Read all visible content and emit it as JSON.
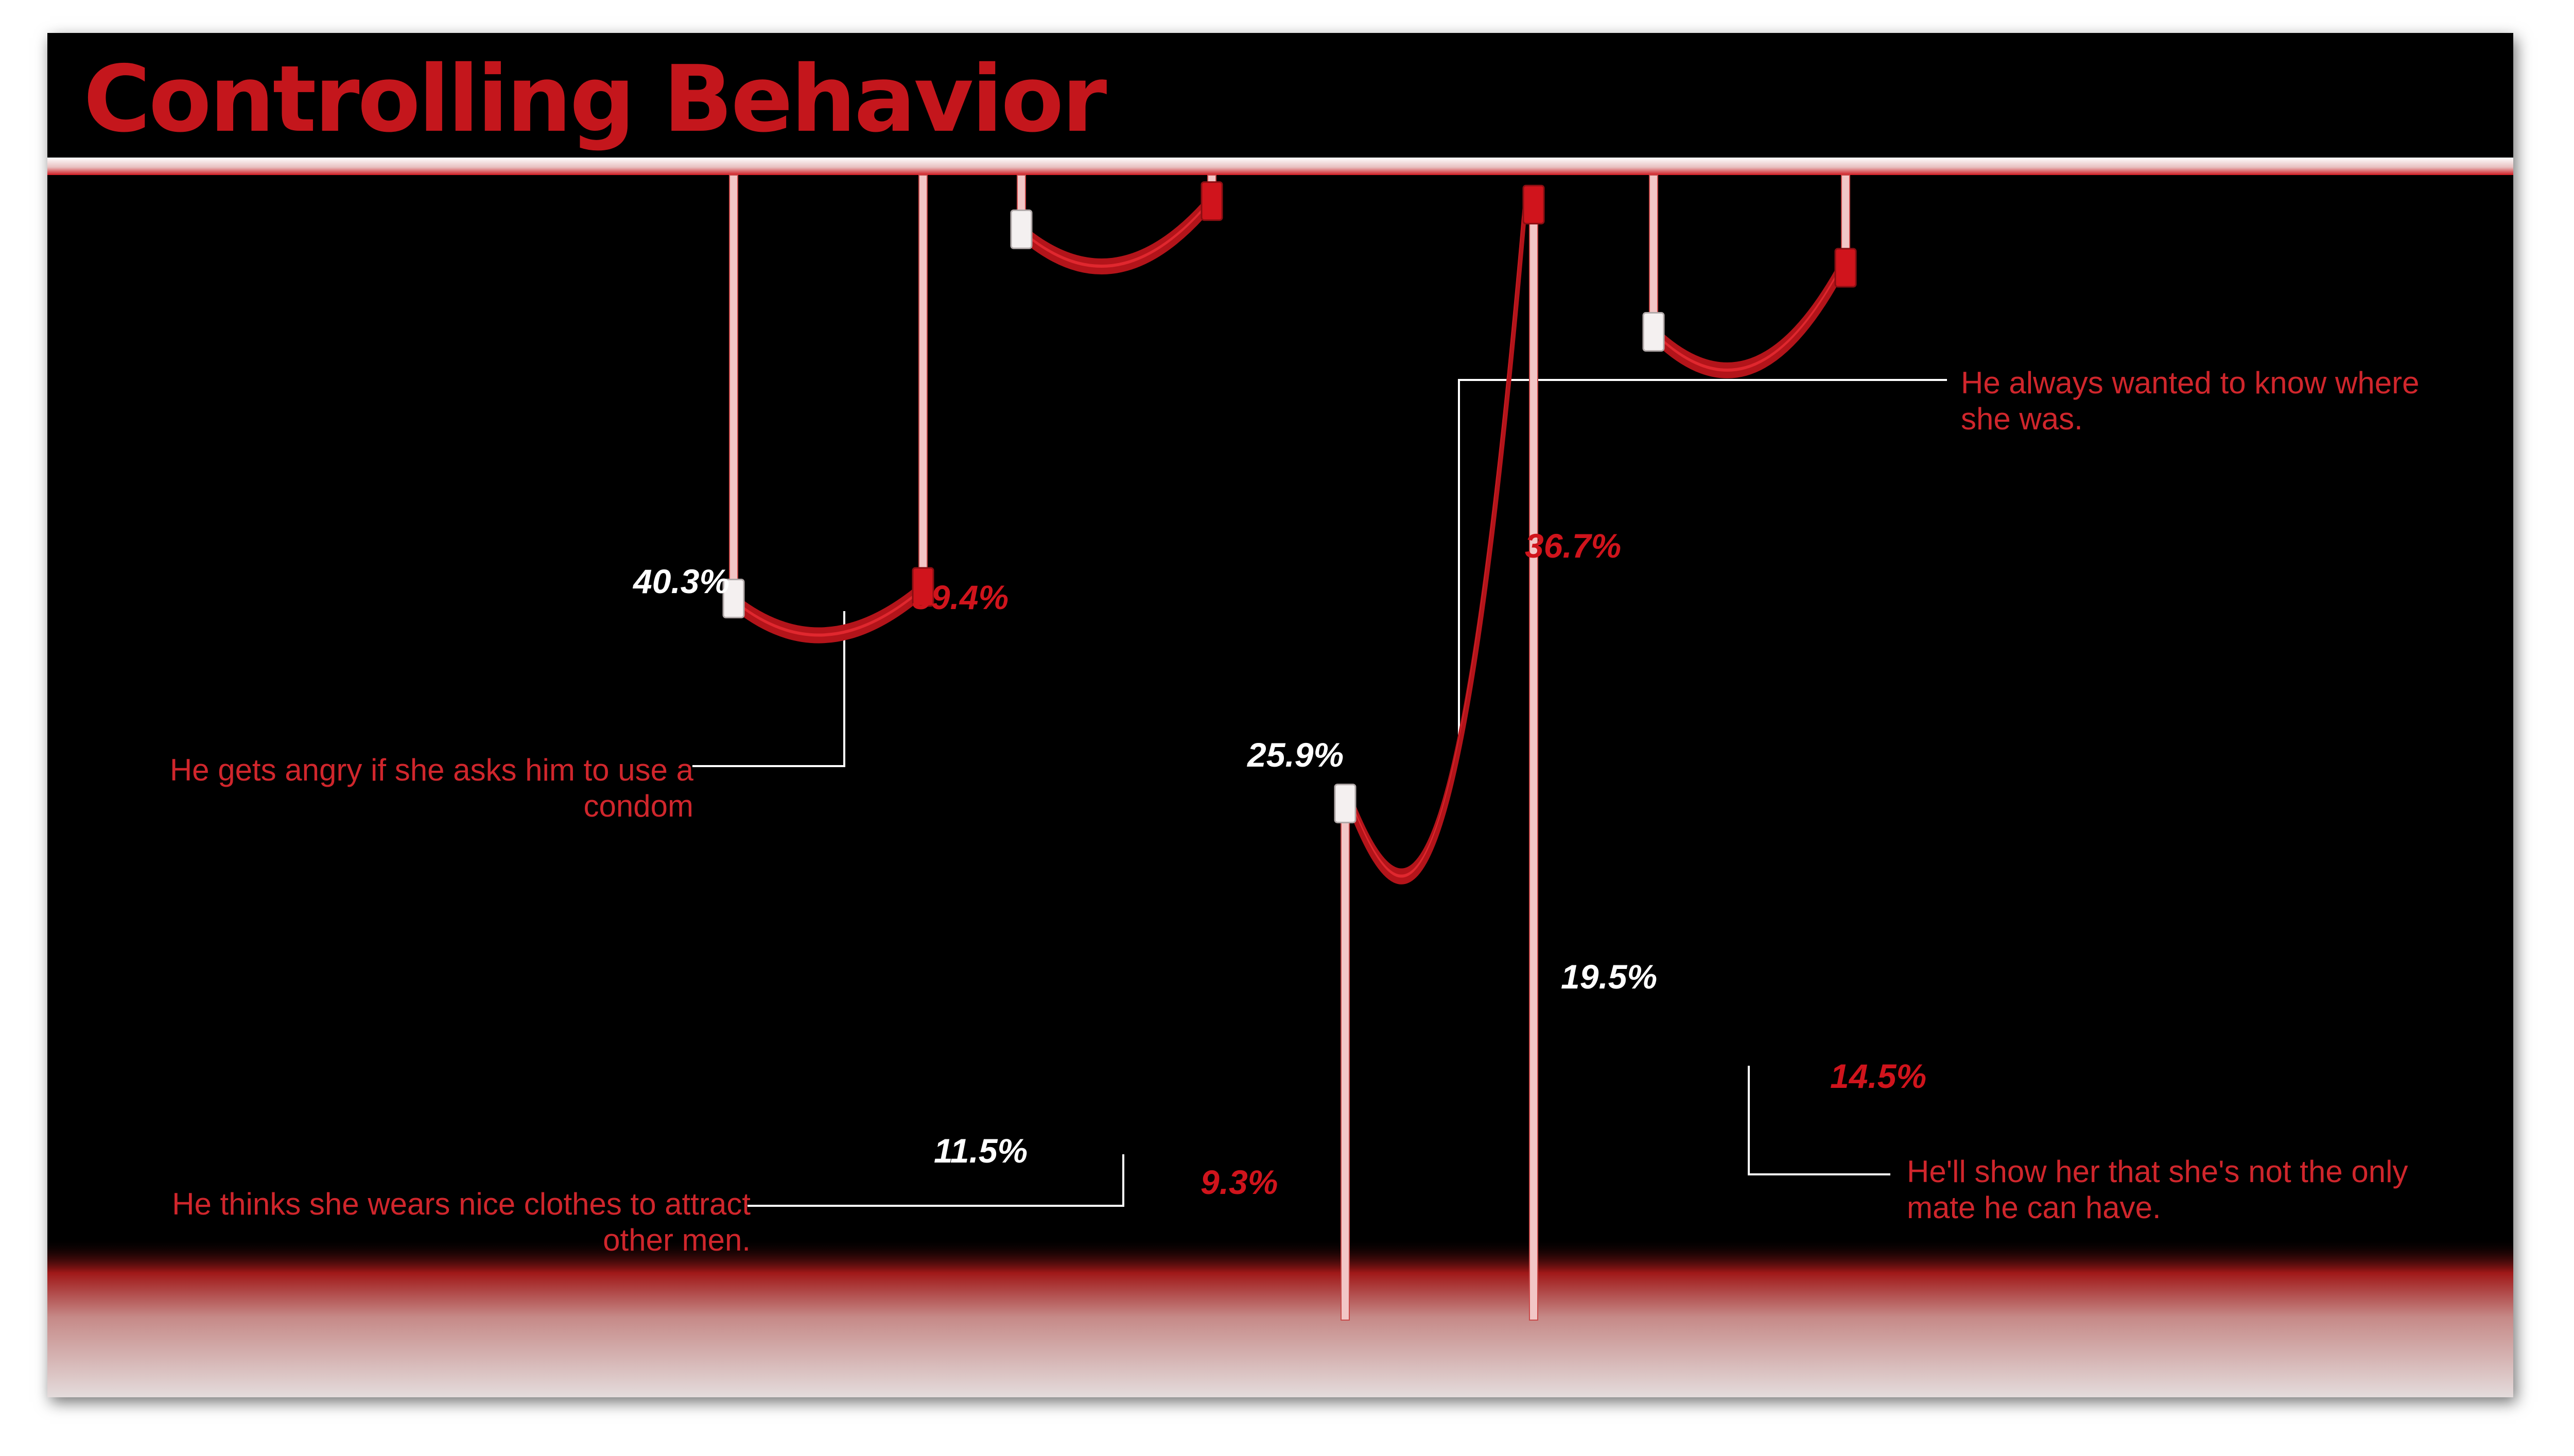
{
  "title": "Controlling Behavior",
  "colors": {
    "background": "#000000",
    "accent": "#c4161c",
    "women_series": "#ffffff",
    "men_series": "#d0141c"
  },
  "chart_data": {
    "type": "line",
    "title": "Controlling Behavior",
    "categories": [
      "He gets angry if she asks him to use a condom",
      "He thinks she wears nice clothes to attract other men.",
      "He always wanted to know where she was.",
      "He'll show her that she's not the only mate he can have."
    ],
    "series": [
      {
        "values": [
          40.3,
          11.5,
          25.9,
          19.5
        ]
      },
      {
        "values": [
          39.4,
          9.3,
          36.7,
          14.5
        ]
      }
    ],
    "value_labels": {
      "first": [
        "40.3%",
        "11.5%",
        "25.9%",
        "19.5%"
      ],
      "second": [
        "39.4%",
        "9.3%",
        "36.7%",
        "14.5%"
      ]
    },
    "unit": "%",
    "ylim": [
      0,
      50
    ],
    "grid": false,
    "legend": "none"
  }
}
